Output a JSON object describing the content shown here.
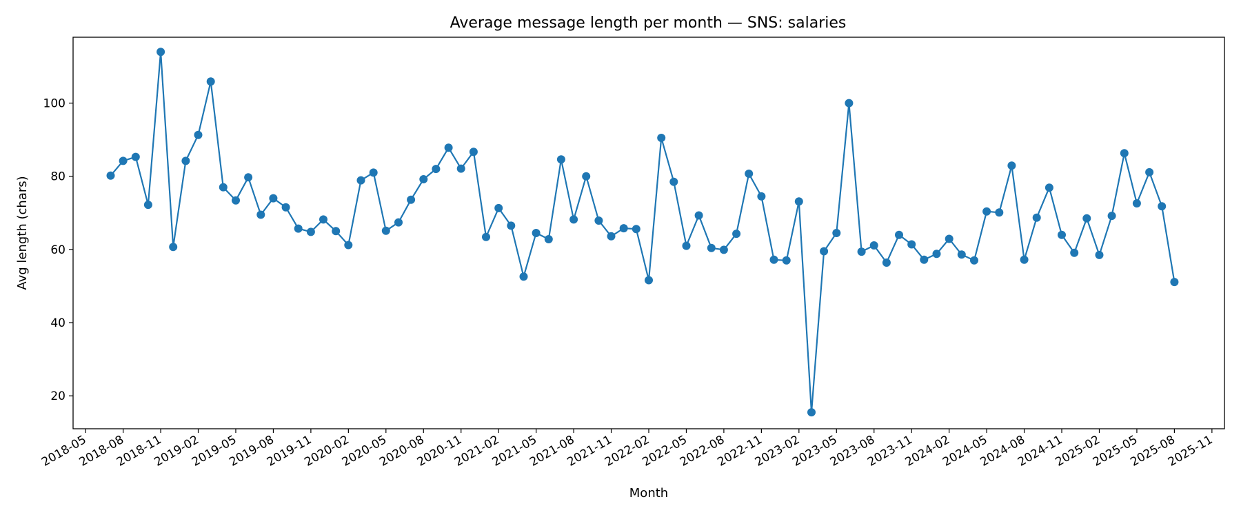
{
  "chart_data": {
    "type": "line",
    "title": "Average message length per month — SNS: salaries",
    "xlabel": "Month",
    "ylabel": "Avg length (chars)",
    "xlim": [
      "2018-04",
      "2025-12"
    ],
    "ylim": [
      11,
      118
    ],
    "x_ticks": [
      "2018-05",
      "2018-08",
      "2018-11",
      "2019-02",
      "2019-05",
      "2019-08",
      "2019-11",
      "2020-02",
      "2020-05",
      "2020-08",
      "2020-11",
      "2021-02",
      "2021-05",
      "2021-08",
      "2021-11",
      "2022-02",
      "2022-05",
      "2022-08",
      "2022-11",
      "2023-02",
      "2023-05",
      "2023-08",
      "2023-11",
      "2024-02",
      "2024-05",
      "2024-08",
      "2024-11",
      "2025-02",
      "2025-05",
      "2025-08",
      "2025-11"
    ],
    "y_ticks": [
      20,
      40,
      60,
      80,
      100
    ],
    "grid": false,
    "legend": "none",
    "marker": "circle",
    "line_color": "#1f77b4",
    "series": [
      {
        "x": [
          "2018-07",
          "2018-08",
          "2018-09",
          "2018-10",
          "2018-11",
          "2018-12",
          "2019-01",
          "2019-02",
          "2019-03",
          "2019-04",
          "2019-05",
          "2019-06",
          "2019-07",
          "2019-08",
          "2019-09",
          "2019-10",
          "2019-11",
          "2019-12",
          "2020-01",
          "2020-02",
          "2020-03",
          "2020-04",
          "2020-05",
          "2020-06",
          "2020-07",
          "2020-08",
          "2020-09",
          "2020-10",
          "2020-11",
          "2020-12",
          "2021-01",
          "2021-02",
          "2021-03",
          "2021-04",
          "2021-05",
          "2021-06",
          "2021-07",
          "2021-08",
          "2021-09",
          "2021-10",
          "2021-11",
          "2021-12",
          "2022-01",
          "2022-02",
          "2022-03",
          "2022-04",
          "2022-05",
          "2022-06",
          "2022-07",
          "2022-08",
          "2022-09",
          "2022-10",
          "2022-11",
          "2022-12",
          "2023-01",
          "2023-02",
          "2023-03",
          "2023-04",
          "2023-05",
          "2023-06",
          "2023-07",
          "2023-08",
          "2023-09",
          "2023-10",
          "2023-11",
          "2023-12",
          "2024-01",
          "2024-02",
          "2024-03",
          "2024-04",
          "2024-05",
          "2024-06",
          "2024-07",
          "2024-08",
          "2024-09",
          "2024-10",
          "2024-11",
          "2024-12",
          "2025-01",
          "2025-02",
          "2025-03",
          "2025-04",
          "2025-05",
          "2025-06",
          "2025-07",
          "2025-08"
        ],
        "values": [
          80.2,
          84.2,
          85.3,
          72.2,
          114.0,
          60.7,
          84.2,
          91.3,
          105.9,
          77.0,
          73.4,
          79.7,
          69.5,
          74.0,
          71.5,
          65.7,
          64.8,
          68.2,
          65.0,
          61.2,
          78.9,
          81.0,
          65.1,
          67.4,
          73.6,
          79.2,
          82.0,
          87.8,
          82.1,
          86.7,
          63.4,
          71.3,
          66.5,
          52.6,
          64.5,
          62.8,
          84.6,
          68.2,
          80.0,
          67.9,
          63.6,
          65.8,
          65.6,
          51.6,
          90.5,
          78.5,
          61.0,
          69.3,
          60.4,
          59.9,
          64.3,
          80.7,
          74.5,
          57.2,
          57.0,
          73.1,
          15.5,
          59.5,
          64.5,
          100.0,
          59.4,
          61.1,
          56.4,
          64.0,
          61.4,
          57.2,
          58.8,
          62.9,
          58.6,
          57.0,
          70.4,
          70.1,
          82.9,
          57.2,
          68.7,
          76.9,
          64.0,
          59.1,
          68.5,
          58.5,
          69.2,
          86.3,
          72.6,
          81.1,
          71.8,
          51.1
        ]
      }
    ]
  }
}
